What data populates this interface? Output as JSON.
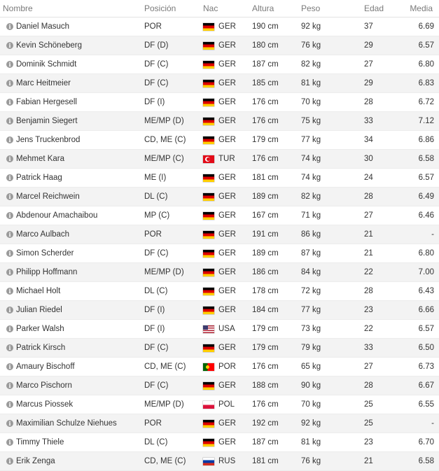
{
  "headers": {
    "name": "Nombre",
    "position": "Posición",
    "nation": "Nac",
    "height": "Altura",
    "weight": "Peso",
    "age": "Edad",
    "rating": "Media"
  },
  "players": [
    {
      "name": "Daniel Masuch",
      "position": "POR",
      "nation": "GER",
      "height": "190 cm",
      "weight": "92 kg",
      "age": "37",
      "rating": "6.69"
    },
    {
      "name": "Kevin Schöneberg",
      "position": "DF (D)",
      "nation": "GER",
      "height": "180 cm",
      "weight": "76 kg",
      "age": "29",
      "rating": "6.57"
    },
    {
      "name": "Dominik Schmidt",
      "position": "DF (C)",
      "nation": "GER",
      "height": "187 cm",
      "weight": "82 kg",
      "age": "27",
      "rating": "6.80"
    },
    {
      "name": "Marc Heitmeier",
      "position": "DF (C)",
      "nation": "GER",
      "height": "185 cm",
      "weight": "81 kg",
      "age": "29",
      "rating": "6.83"
    },
    {
      "name": "Fabian Hergesell",
      "position": "DF (I)",
      "nation": "GER",
      "height": "176 cm",
      "weight": "70 kg",
      "age": "28",
      "rating": "6.72"
    },
    {
      "name": "Benjamin Siegert",
      "position": "ME/MP (D)",
      "nation": "GER",
      "height": "176 cm",
      "weight": "75 kg",
      "age": "33",
      "rating": "7.12"
    },
    {
      "name": "Jens Truckenbrod",
      "position": "CD, ME (C)",
      "nation": "GER",
      "height": "179 cm",
      "weight": "77 kg",
      "age": "34",
      "rating": "6.86"
    },
    {
      "name": "Mehmet Kara",
      "position": "ME/MP (C)",
      "nation": "TUR",
      "height": "176 cm",
      "weight": "74 kg",
      "age": "30",
      "rating": "6.58"
    },
    {
      "name": "Patrick Haag",
      "position": "ME (I)",
      "nation": "GER",
      "height": "181 cm",
      "weight": "74 kg",
      "age": "24",
      "rating": "6.57"
    },
    {
      "name": "Marcel Reichwein",
      "position": "DL (C)",
      "nation": "GER",
      "height": "189 cm",
      "weight": "82 kg",
      "age": "28",
      "rating": "6.49"
    },
    {
      "name": "Abdenour Amachaibou",
      "position": "MP (C)",
      "nation": "GER",
      "height": "167 cm",
      "weight": "71 kg",
      "age": "27",
      "rating": "6.46"
    },
    {
      "name": "Marco Aulbach",
      "position": "POR",
      "nation": "GER",
      "height": "191 cm",
      "weight": "86 kg",
      "age": "21",
      "rating": "-"
    },
    {
      "name": "Simon Scherder",
      "position": "DF (C)",
      "nation": "GER",
      "height": "189 cm",
      "weight": "87 kg",
      "age": "21",
      "rating": "6.80"
    },
    {
      "name": "Philipp Hoffmann",
      "position": "ME/MP (D)",
      "nation": "GER",
      "height": "186 cm",
      "weight": "84 kg",
      "age": "22",
      "rating": "7.00"
    },
    {
      "name": "Michael Holt",
      "position": "DL (C)",
      "nation": "GER",
      "height": "178 cm",
      "weight": "72 kg",
      "age": "28",
      "rating": "6.43"
    },
    {
      "name": "Julian Riedel",
      "position": "DF (I)",
      "nation": "GER",
      "height": "184 cm",
      "weight": "77 kg",
      "age": "23",
      "rating": "6.66"
    },
    {
      "name": "Parker Walsh",
      "position": "DF (I)",
      "nation": "USA",
      "height": "179 cm",
      "weight": "73 kg",
      "age": "22",
      "rating": "6.57"
    },
    {
      "name": "Patrick Kirsch",
      "position": "DF (C)",
      "nation": "GER",
      "height": "179 cm",
      "weight": "79 kg",
      "age": "33",
      "rating": "6.50"
    },
    {
      "name": "Amaury Bischoff",
      "position": "CD, ME (C)",
      "nation": "POR",
      "height": "176 cm",
      "weight": "65 kg",
      "age": "27",
      "rating": "6.73"
    },
    {
      "name": "Marco Pischorn",
      "position": "DF (C)",
      "nation": "GER",
      "height": "188 cm",
      "weight": "90 kg",
      "age": "28",
      "rating": "6.67"
    },
    {
      "name": "Marcus Piossek",
      "position": "ME/MP (D)",
      "nation": "POL",
      "height": "176 cm",
      "weight": "70 kg",
      "age": "25",
      "rating": "6.55"
    },
    {
      "name": "Maximilian Schulze Niehues",
      "position": "POR",
      "nation": "GER",
      "height": "192 cm",
      "weight": "92 kg",
      "age": "25",
      "rating": "-"
    },
    {
      "name": "Timmy Thiele",
      "position": "DL (C)",
      "nation": "GER",
      "height": "187 cm",
      "weight": "81 kg",
      "age": "23",
      "rating": "6.70"
    },
    {
      "name": "Erik Zenga",
      "position": "CD, ME (C)",
      "nation": "RUS",
      "height": "181 cm",
      "weight": "76 kg",
      "age": "21",
      "rating": "6.58"
    }
  ],
  "info_glyph": "i",
  "icons": {
    "info": "info-icon",
    "flag": "flag-icon"
  },
  "colors": {
    "row_alt": "#f3f3f3",
    "header_text": "#7a7a7a",
    "info_icon": "#9a9a9a"
  }
}
